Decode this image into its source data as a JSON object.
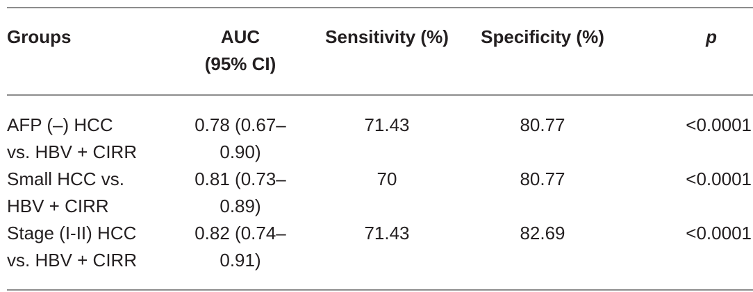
{
  "table": {
    "headers": [
      [
        "Groups"
      ],
      [
        "AUC",
        "(95% CI)"
      ],
      [
        "Sensitivity (%)"
      ],
      [
        "Specificity (%)"
      ],
      [
        "p"
      ]
    ],
    "rows": [
      {
        "group": [
          "AFP (–) HCC",
          "vs. HBV + CIRR"
        ],
        "auc": [
          "0.78 (0.67–",
          "0.90)"
        ],
        "sensitivity": "71.43",
        "specificity": "80.77",
        "p": "<0.0001"
      },
      {
        "group": [
          "Small HCC vs.",
          "HBV + CIRR"
        ],
        "auc": [
          "0.81 (0.73–",
          "0.89)"
        ],
        "sensitivity": "70",
        "specificity": "80.77",
        "p": "<0.0001"
      },
      {
        "group": [
          "Stage (I-II) HCC",
          "vs. HBV + CIRR"
        ],
        "auc": [
          "0.82 (0.74–",
          "0.91)"
        ],
        "sensitivity": "71.43",
        "specificity": "82.69",
        "p": "<0.0001"
      }
    ]
  }
}
